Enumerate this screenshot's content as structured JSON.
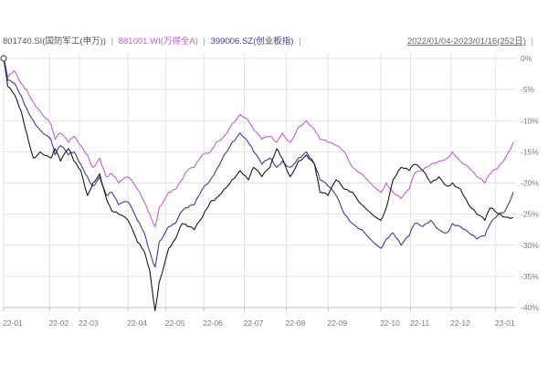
{
  "header": {
    "series_labels": [
      "801740.SI(国防军工(申万))",
      "881001.WI(万得全A)",
      "399006.SZ(创业板指)"
    ],
    "separator": "|",
    "date_range": "2022/01/04-2023/01/16(252日)"
  },
  "colors": {
    "series": [
      "#1a1a1a",
      "#c65fd6",
      "#3e3d9c"
    ],
    "legend_text": [
      "#555555",
      "#c65fd6",
      "#3e3d9c"
    ],
    "grid": "#e3e3e3",
    "axis": "#bdbdbd",
    "tick_text": "#7a7a7a"
  },
  "chart_data": {
    "type": "line",
    "title": "",
    "xlabel": "",
    "ylabel": "",
    "ylim": [
      -40,
      0
    ],
    "xlim": [
      "2022-01-04",
      "2023-01-16"
    ],
    "y_ticks": [
      "0%",
      "-5%",
      "-10%",
      "-15%",
      "-20%",
      "-25%",
      "-30%",
      "-35%",
      "-40%"
    ],
    "y_tick_values": [
      0,
      -5,
      -10,
      -15,
      -20,
      -25,
      -30,
      -35,
      -40
    ],
    "x_ticks": [
      "22-01",
      "22-02",
      "22-03",
      "22-04",
      "22-05",
      "22-06",
      "22-07",
      "22-08",
      "22-09",
      "22-10",
      "22-11",
      "22-12",
      "23-01"
    ],
    "x_tick_dates": [
      "2022-01-04",
      "2022-02-07",
      "2022-03-01",
      "2022-04-06",
      "2022-05-04",
      "2022-06-01",
      "2022-07-01",
      "2022-08-01",
      "2022-09-01",
      "2022-10-10",
      "2022-11-01",
      "2022-12-01",
      "2023-01-03"
    ],
    "grid": true,
    "y_axis_side": "right",
    "series": [
      {
        "name": "801740.SI(国防军工(申万))",
        "points": [
          [
            "2022-01-04",
            0
          ],
          [
            "2022-01-07",
            -4.5
          ],
          [
            "2022-01-12",
            -5.8
          ],
          [
            "2022-01-17",
            -8.5
          ],
          [
            "2022-01-21",
            -12
          ],
          [
            "2022-01-26",
            -16
          ],
          [
            "2022-01-31",
            -15
          ],
          [
            "2022-02-08",
            -16
          ],
          [
            "2022-02-11",
            -14.5
          ],
          [
            "2022-02-15",
            -16.5
          ],
          [
            "2022-02-21",
            -14.5
          ],
          [
            "2022-02-25",
            -16.5
          ],
          [
            "2022-03-02",
            -18
          ],
          [
            "2022-03-07",
            -22
          ],
          [
            "2022-03-11",
            -20
          ],
          [
            "2022-03-16",
            -18.5
          ],
          [
            "2022-03-21",
            -22.5
          ],
          [
            "2022-03-25",
            -24.5
          ],
          [
            "2022-03-30",
            -25
          ],
          [
            "2022-04-06",
            -26
          ],
          [
            "2022-04-13",
            -29.5
          ],
          [
            "2022-04-18",
            -31
          ],
          [
            "2022-04-22",
            -34
          ],
          [
            "2022-04-26",
            -40.5
          ],
          [
            "2022-04-29",
            -36
          ],
          [
            "2022-05-06",
            -30.5
          ],
          [
            "2022-05-11",
            -29
          ],
          [
            "2022-05-16",
            -26.5
          ],
          [
            "2022-05-20",
            -27
          ],
          [
            "2022-05-25",
            -27.5
          ],
          [
            "2022-05-31",
            -25.5
          ],
          [
            "2022-06-06",
            -23
          ],
          [
            "2022-06-10",
            -22.5
          ],
          [
            "2022-06-16",
            -21
          ],
          [
            "2022-06-22",
            -19.5
          ],
          [
            "2022-06-28",
            -18
          ],
          [
            "2022-07-04",
            -19.5
          ],
          [
            "2022-07-08",
            -17.5
          ],
          [
            "2022-07-14",
            -19
          ],
          [
            "2022-07-20",
            -17.5
          ],
          [
            "2022-07-25",
            -14.5
          ],
          [
            "2022-07-29",
            -16
          ],
          [
            "2022-08-04",
            -19
          ],
          [
            "2022-08-10",
            -16.5
          ],
          [
            "2022-08-16",
            -15.5
          ],
          [
            "2022-08-22",
            -17
          ],
          [
            "2022-08-26",
            -21.5
          ],
          [
            "2022-09-01",
            -22
          ],
          [
            "2022-09-07",
            -19.5
          ],
          [
            "2022-09-13",
            -21
          ],
          [
            "2022-09-19",
            -21.5
          ],
          [
            "2022-09-26",
            -23.5
          ],
          [
            "2022-10-10",
            -26
          ],
          [
            "2022-10-14",
            -24
          ],
          [
            "2022-10-19",
            -19.5
          ],
          [
            "2022-10-25",
            -17.5
          ],
          [
            "2022-10-31",
            -18
          ],
          [
            "2022-11-04",
            -17
          ],
          [
            "2022-11-10",
            -18
          ],
          [
            "2022-11-16",
            -20
          ],
          [
            "2022-11-22",
            -19
          ],
          [
            "2022-11-28",
            -20.5
          ],
          [
            "2022-12-02",
            -20
          ],
          [
            "2022-12-08",
            -21
          ],
          [
            "2022-12-14",
            -23.5
          ],
          [
            "2022-12-20",
            -25
          ],
          [
            "2022-12-26",
            -26
          ],
          [
            "2022-12-30",
            -24
          ],
          [
            "2023-01-05",
            -25
          ],
          [
            "2023-01-10",
            -25.5
          ],
          [
            "2023-01-16",
            -25.5
          ]
        ]
      },
      {
        "name": "881001.WI(万得全A)",
        "points": [
          [
            "2022-01-04",
            0
          ],
          [
            "2022-01-07",
            -3
          ],
          [
            "2022-01-12",
            -2
          ],
          [
            "2022-01-17",
            -4
          ],
          [
            "2022-01-21",
            -5
          ],
          [
            "2022-01-26",
            -7
          ],
          [
            "2022-01-31",
            -8.5
          ],
          [
            "2022-02-08",
            -10.5
          ],
          [
            "2022-02-11",
            -13
          ],
          [
            "2022-02-15",
            -12
          ],
          [
            "2022-02-21",
            -13.5
          ],
          [
            "2022-02-25",
            -12.5
          ],
          [
            "2022-03-02",
            -14
          ],
          [
            "2022-03-07",
            -15.5
          ],
          [
            "2022-03-11",
            -17.5
          ],
          [
            "2022-03-16",
            -16
          ],
          [
            "2022-03-21",
            -19
          ],
          [
            "2022-03-25",
            -18.5
          ],
          [
            "2022-03-30",
            -20
          ],
          [
            "2022-04-06",
            -19
          ],
          [
            "2022-04-13",
            -21
          ],
          [
            "2022-04-18",
            -23
          ],
          [
            "2022-04-22",
            -25
          ],
          [
            "2022-04-26",
            -27
          ],
          [
            "2022-04-29",
            -24
          ],
          [
            "2022-05-06",
            -21.5
          ],
          [
            "2022-05-11",
            -21
          ],
          [
            "2022-05-16",
            -19.5
          ],
          [
            "2022-05-20",
            -18
          ],
          [
            "2022-05-25",
            -17.5
          ],
          [
            "2022-05-31",
            -15.5
          ],
          [
            "2022-06-06",
            -15
          ],
          [
            "2022-06-10",
            -13.5
          ],
          [
            "2022-06-16",
            -12.5
          ],
          [
            "2022-06-22",
            -10.5
          ],
          [
            "2022-06-28",
            -9
          ],
          [
            "2022-07-04",
            -10
          ],
          [
            "2022-07-08",
            -11.5
          ],
          [
            "2022-07-14",
            -13
          ],
          [
            "2022-07-20",
            -12.5
          ],
          [
            "2022-07-25",
            -13.5
          ],
          [
            "2022-07-29",
            -12
          ],
          [
            "2022-08-04",
            -13.5
          ],
          [
            "2022-08-10",
            -11
          ],
          [
            "2022-08-16",
            -10
          ],
          [
            "2022-08-22",
            -11.5
          ],
          [
            "2022-08-26",
            -13
          ],
          [
            "2022-09-01",
            -13.5
          ],
          [
            "2022-09-07",
            -14
          ],
          [
            "2022-09-13",
            -15
          ],
          [
            "2022-09-19",
            -17.5
          ],
          [
            "2022-09-26",
            -18.5
          ],
          [
            "2022-10-10",
            -21.5
          ],
          [
            "2022-10-14",
            -20
          ],
          [
            "2022-10-19",
            -21.5
          ],
          [
            "2022-10-25",
            -22.5
          ],
          [
            "2022-10-31",
            -21
          ],
          [
            "2022-11-04",
            -18.5
          ],
          [
            "2022-11-10",
            -18
          ],
          [
            "2022-11-16",
            -17
          ],
          [
            "2022-11-22",
            -16.5
          ],
          [
            "2022-11-28",
            -16
          ],
          [
            "2022-12-02",
            -15
          ],
          [
            "2022-12-08",
            -16.5
          ],
          [
            "2022-12-14",
            -17.5
          ],
          [
            "2022-12-20",
            -19
          ],
          [
            "2022-12-26",
            -20
          ],
          [
            "2022-12-30",
            -18.5
          ],
          [
            "2023-01-05",
            -17.5
          ],
          [
            "2023-01-10",
            -16
          ],
          [
            "2023-01-16",
            -13.5
          ]
        ]
      },
      {
        "name": "399006.SZ(创业板指)",
        "points": [
          [
            "2022-01-04",
            0
          ],
          [
            "2022-01-07",
            -3.5
          ],
          [
            "2022-01-12",
            -4
          ],
          [
            "2022-01-17",
            -6
          ],
          [
            "2022-01-21",
            -8
          ],
          [
            "2022-01-26",
            -10
          ],
          [
            "2022-01-31",
            -11.5
          ],
          [
            "2022-02-08",
            -13
          ],
          [
            "2022-02-11",
            -15.5
          ],
          [
            "2022-02-15",
            -14
          ],
          [
            "2022-02-21",
            -15.5
          ],
          [
            "2022-02-25",
            -15
          ],
          [
            "2022-03-02",
            -17
          ],
          [
            "2022-03-07",
            -19
          ],
          [
            "2022-03-11",
            -20.5
          ],
          [
            "2022-03-16",
            -19
          ],
          [
            "2022-03-21",
            -22
          ],
          [
            "2022-03-25",
            -21.5
          ],
          [
            "2022-03-30",
            -23.5
          ],
          [
            "2022-04-06",
            -23
          ],
          [
            "2022-04-13",
            -26
          ],
          [
            "2022-04-18",
            -28
          ],
          [
            "2022-04-22",
            -31
          ],
          [
            "2022-04-26",
            -33.5
          ],
          [
            "2022-04-29",
            -29.5
          ],
          [
            "2022-05-06",
            -27
          ],
          [
            "2022-05-11",
            -26.5
          ],
          [
            "2022-05-16",
            -24.5
          ],
          [
            "2022-05-20",
            -24
          ],
          [
            "2022-05-25",
            -23.5
          ],
          [
            "2022-05-31",
            -21
          ],
          [
            "2022-06-06",
            -19.5
          ],
          [
            "2022-06-10",
            -18
          ],
          [
            "2022-06-16",
            -15.5
          ],
          [
            "2022-06-22",
            -13.5
          ],
          [
            "2022-06-28",
            -12
          ],
          [
            "2022-07-04",
            -13.5
          ],
          [
            "2022-07-08",
            -15
          ],
          [
            "2022-07-14",
            -17
          ],
          [
            "2022-07-20",
            -16
          ],
          [
            "2022-07-25",
            -17.5
          ],
          [
            "2022-07-29",
            -16.5
          ],
          [
            "2022-08-04",
            -17.5
          ],
          [
            "2022-08-10",
            -16
          ],
          [
            "2022-08-16",
            -15
          ],
          [
            "2022-08-22",
            -17
          ],
          [
            "2022-08-26",
            -19.5
          ],
          [
            "2022-09-01",
            -20.5
          ],
          [
            "2022-09-07",
            -22
          ],
          [
            "2022-09-13",
            -25
          ],
          [
            "2022-09-19",
            -26.5
          ],
          [
            "2022-09-26",
            -27.5
          ],
          [
            "2022-10-10",
            -30.5
          ],
          [
            "2022-10-14",
            -29
          ],
          [
            "2022-10-19",
            -28
          ],
          [
            "2022-10-25",
            -30
          ],
          [
            "2022-10-31",
            -28.5
          ],
          [
            "2022-11-04",
            -26.5
          ],
          [
            "2022-11-10",
            -27
          ],
          [
            "2022-11-16",
            -26
          ],
          [
            "2022-11-22",
            -27.5
          ],
          [
            "2022-11-28",
            -28
          ],
          [
            "2022-12-02",
            -26.5
          ],
          [
            "2022-12-08",
            -27
          ],
          [
            "2022-12-14",
            -28
          ],
          [
            "2022-12-20",
            -29
          ],
          [
            "2022-12-26",
            -28.5
          ],
          [
            "2022-12-30",
            -26.5
          ],
          [
            "2023-01-05",
            -25
          ],
          [
            "2023-01-10",
            -24.5
          ],
          [
            "2023-01-16",
            -21.5
          ]
        ]
      }
    ]
  }
}
